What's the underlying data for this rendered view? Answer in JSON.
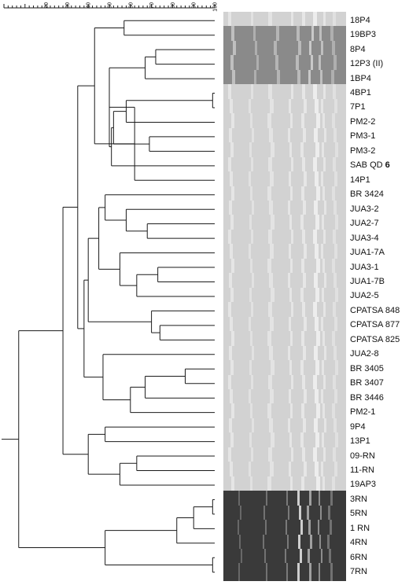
{
  "scale": {
    "ticks": [
      20,
      30,
      40,
      50,
      60,
      70,
      80,
      90,
      100
    ]
  },
  "samples": [
    {
      "label": "18P4",
      "suffix": "",
      "tone": "light"
    },
    {
      "label": "19BP3",
      "suffix": "",
      "tone": "mid"
    },
    {
      "label": "8P4",
      "suffix": "",
      "tone": "mid"
    },
    {
      "label": "12P3 (II)",
      "suffix": "",
      "tone": "mid"
    },
    {
      "label": "1BP4",
      "suffix": "",
      "tone": "mid"
    },
    {
      "label": "4BP1",
      "suffix": "",
      "tone": "light"
    },
    {
      "label": "7P1",
      "suffix": "",
      "tone": "light"
    },
    {
      "label": "PM2-2",
      "suffix": "",
      "tone": "light"
    },
    {
      "label": "PM3-1",
      "suffix": "",
      "tone": "light"
    },
    {
      "label": "PM3-2",
      "suffix": "",
      "tone": "light"
    },
    {
      "label": "SAB QD ",
      "suffix": "6",
      "tone": "light"
    },
    {
      "label": "14P1",
      "suffix": "",
      "tone": "light"
    },
    {
      "label": "BR 3424",
      "suffix": "",
      "tone": "light"
    },
    {
      "label": "JUA3-2",
      "suffix": "",
      "tone": "light"
    },
    {
      "label": "JUA2-7",
      "suffix": "",
      "tone": "light"
    },
    {
      "label": "JUA3-4",
      "suffix": "",
      "tone": "light"
    },
    {
      "label": "JUA1-7A",
      "suffix": "",
      "tone": "light"
    },
    {
      "label": "JUA3-1",
      "suffix": "",
      "tone": "light"
    },
    {
      "label": "JUA1-7B",
      "suffix": "",
      "tone": "light"
    },
    {
      "label": "JUA2-5",
      "suffix": "",
      "tone": "light"
    },
    {
      "label": "CPATSA 848",
      "suffix": "",
      "tone": "light"
    },
    {
      "label": "CPATSA 877",
      "suffix": "",
      "tone": "light"
    },
    {
      "label": "CPATSA 825",
      "suffix": "",
      "tone": "light"
    },
    {
      "label": "JUA2-8",
      "suffix": "",
      "tone": "light"
    },
    {
      "label": "BR 3405",
      "suffix": "",
      "tone": "light"
    },
    {
      "label": "BR 3407",
      "suffix": "",
      "tone": "light"
    },
    {
      "label": "BR 3446",
      "suffix": "",
      "tone": "light"
    },
    {
      "label": "PM2-1",
      "suffix": "",
      "tone": "light"
    },
    {
      "label": "9P4",
      "suffix": "",
      "tone": "light"
    },
    {
      "label": "13P1",
      "suffix": "",
      "tone": "light"
    },
    {
      "label": "09-RN",
      "suffix": "",
      "tone": "light"
    },
    {
      "label": "11-RN",
      "suffix": "",
      "tone": "light"
    },
    {
      "label": "19AP3",
      "suffix": "",
      "tone": "light"
    },
    {
      "label": "3RN",
      "suffix": "",
      "tone": "dark"
    },
    {
      "label": "5RN",
      "suffix": "",
      "tone": "dark"
    },
    {
      "label": "1 RN",
      "suffix": "",
      "tone": "dark"
    },
    {
      "label": "4RN",
      "suffix": "",
      "tone": "dark"
    },
    {
      "label": "6RN",
      "suffix": "",
      "tone": "dark"
    },
    {
      "label": "7RN",
      "suffix": "",
      "tone": "dark"
    }
  ],
  "tree": {
    "similarity": 7,
    "children": [
      {
        "similarity": 28,
        "children": [
          {
            "similarity": 35,
            "children": [
              {
                "similarity": 43,
                "children": [
                  {
                    "similarity": 57,
                    "children": [
                      {
                        "leaf": 0
                      },
                      {
                        "leaf": 1
                      }
                    ]
                  },
                  {
                    "similarity": 62,
                    "children": [
                      {
                        "similarity": 50,
                        "children": [
                          {
                            "similarity": 67,
                            "children": [
                              {
                                "similarity": 72,
                                "children": [
                                  {
                                    "leaf": 2
                                  },
                                  {
                                    "leaf": 3
                                  }
                                ]
                              },
                              {
                                "leaf": 4
                              }
                            ]
                          },
                          {
                            "similarity": 51,
                            "children": [
                              {
                                "similarity": 52,
                                "children": [
                                  {
                                    "similarity": 58,
                                    "children": [
                                      {
                                        "similarity": 99,
                                        "children": [
                                          {
                                            "leaf": 5
                                          },
                                          {
                                            "leaf": 6
                                          }
                                        ]
                                      },
                                      {
                                        "leaf": 7
                                      }
                                    ]
                                  },
                                  {
                                    "similarity": 69,
                                    "children": [
                                      {
                                        "leaf": 8
                                      },
                                      {
                                        "leaf": 9
                                      }
                                    ]
                                  }
                                ]
                              },
                              {
                                "leaf": 10
                              }
                            ]
                          }
                        ]
                      },
                      {
                        "leaf": 11
                      }
                    ]
                  }
                ]
              },
              {
                "similarity": 38,
                "children": [
                  {
                    "similarity": 40,
                    "children": [
                      {
                        "similarity": 45,
                        "children": [
                          {
                            "similarity": 48,
                            "children": [
                              {
                                "leaf": 12
                              },
                              {
                                "similarity": 58,
                                "children": [
                                  {
                                    "leaf": 13
                                  },
                                  {
                                    "similarity": 68,
                                    "children": [
                                      {
                                        "leaf": 14
                                      },
                                      {
                                        "leaf": 15
                                      }
                                    ]
                                  }
                                ]
                              }
                            ]
                          },
                          {
                            "similarity": 55,
                            "children": [
                              {
                                "leaf": 16
                              },
                              {
                                "similarity": 63,
                                "children": [
                                  {
                                    "similarity": 73,
                                    "children": [
                                      {
                                        "leaf": 17
                                      },
                                      {
                                        "leaf": 18
                                      }
                                    ]
                                  },
                                  {
                                    "leaf": 19
                                  }
                                ]
                              }
                            ]
                          }
                        ]
                      },
                      {
                        "similarity": 70,
                        "children": [
                          {
                            "leaf": 20
                          },
                          {
                            "similarity": 74,
                            "children": [
                              {
                                "leaf": 21
                              },
                              {
                                "leaf": 22
                              }
                            ]
                          }
                        ]
                      }
                    ]
                  },
                  {
                    "similarity": 47,
                    "children": [
                      {
                        "leaf": 23
                      },
                      {
                        "similarity": 60,
                        "children": [
                          {
                            "similarity": 67,
                            "children": [
                              {
                                "similarity": 86,
                                "children": [
                                  {
                                    "leaf": 24
                                  },
                                  {
                                    "leaf": 25
                                  }
                                ]
                              },
                              {
                                "leaf": 26
                              }
                            ]
                          },
                          {
                            "leaf": 27
                          }
                        ]
                      }
                    ]
                  }
                ]
              }
            ]
          },
          {
            "similarity": 40,
            "children": [
              {
                "similarity": 48,
                "children": [
                  {
                    "leaf": 28
                  },
                  {
                    "leaf": 29
                  }
                ]
              },
              {
                "similarity": 55,
                "children": [
                  {
                    "similarity": 63,
                    "children": [
                      {
                        "leaf": 30
                      },
                      {
                        "leaf": 31
                      }
                    ]
                  },
                  {
                    "leaf": 32
                  }
                ]
              }
            ]
          }
        ]
      },
      {
        "similarity": 48,
        "children": [
          {
            "similarity": 82,
            "children": [
              {
                "similarity": 90,
                "children": [
                  {
                    "similarity": 99,
                    "children": [
                      {
                        "leaf": 33
                      },
                      {
                        "leaf": 34
                      }
                    ]
                  },
                  {
                    "leaf": 35
                  }
                ]
              },
              {
                "leaf": 36
              }
            ]
          },
          {
            "similarity": 99,
            "children": [
              {
                "leaf": 37
              },
              {
                "leaf": 38
              }
            ]
          }
        ]
      }
    ]
  },
  "colors": {
    "line": "#1a1a1a",
    "lane_light": "#d2d2d2",
    "lane_mid": "#8a8a8a",
    "lane_dark": "#3a3a3a",
    "band_bright": "#f4f4f4"
  }
}
